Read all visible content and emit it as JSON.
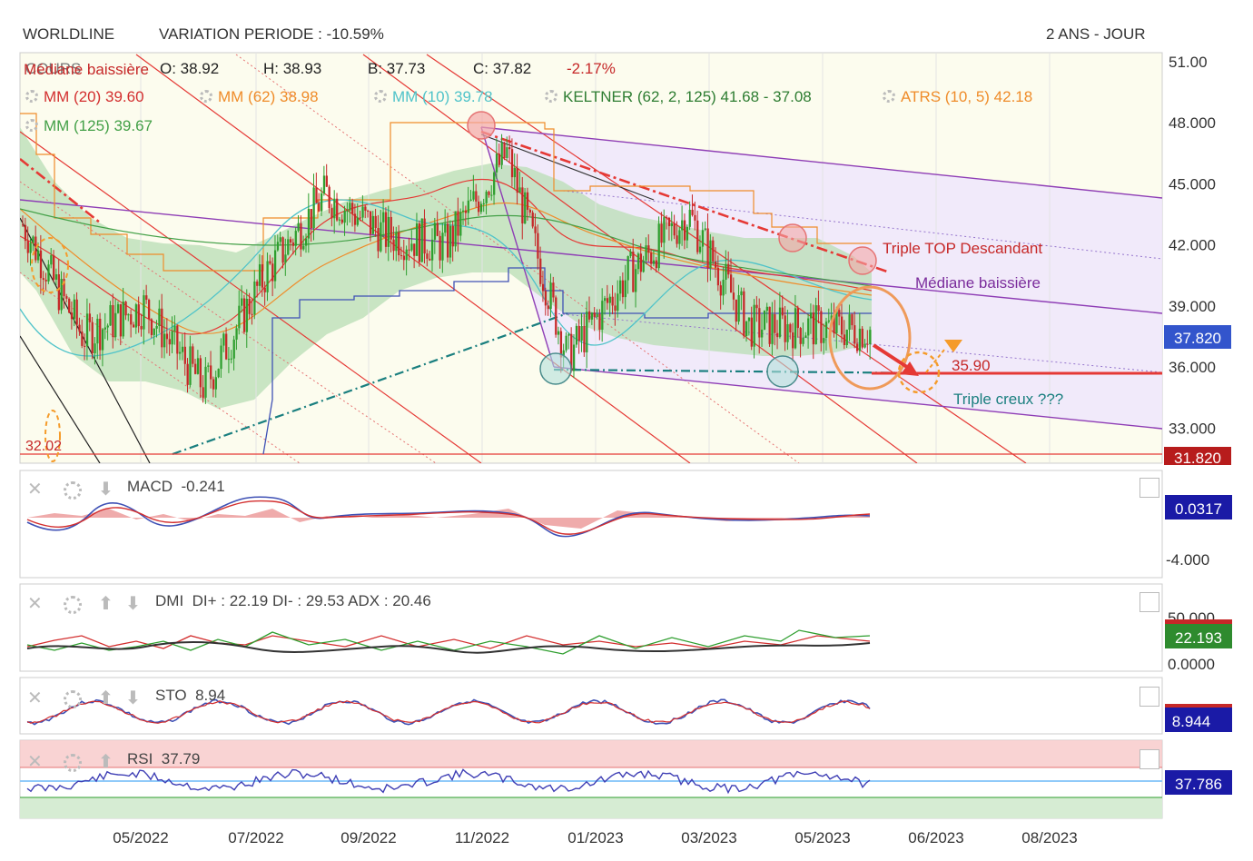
{
  "header": {
    "symbol": "WORLDLINE",
    "variation": "VARIATION PERIODE : -10.59%",
    "period": "2 ANS - JOUR"
  },
  "legend": {
    "cours_label": "COURS",
    "overlap_label": "Médiane baissière",
    "open": "O: 38.92",
    "high": "H: 38.93",
    "low": "B: 37.73",
    "close": "C: 37.82",
    "change": "-2.17%",
    "mm20": "MM (20)  39.60",
    "mm62": "MM (62)  38.98",
    "mm10": "MM (10)  39.78",
    "keltner": "KELTNER (62, 2, 125)  41.68 - 37.08",
    "atrs": "ATRS (10, 5)  42.18",
    "mm125": "MM (125)  39.67"
  },
  "colors": {
    "candle_up": "#2e9e2e",
    "candle_down": "#c62828",
    "mm20": "#d32f2f",
    "mm62": "#ef8c2a",
    "mm10": "#4fc3c9",
    "keltner": "#2e7d32",
    "atrs": "#ef8c2a",
    "mm125": "#43a047",
    "macd_box": "#1a1aa6",
    "dmi_box": "#2e8b2e",
    "price_box": "#3355cc",
    "support_box": "#b71c1c"
  },
  "annotations": {
    "triple_top": "Triple TOP Descandant",
    "mediane": "Médiane baissière",
    "triple_creux": "Triple creux  ???",
    "target": "35.90",
    "low_level": "32.02"
  },
  "panels": {
    "macd": {
      "label": "MACD",
      "value": "-0.241",
      "box": "0.0317",
      "tick": "-4.000"
    },
    "dmi": {
      "label": "DMI",
      "value": "DI+ : 22.19 DI- : 29.53 ADX : 20.46",
      "box": "22.193",
      "tick_top": "50.000",
      "tick_bottom": "0.0000"
    },
    "sto": {
      "label": "STO",
      "value": "8.94",
      "box": "8.944"
    },
    "rsi": {
      "label": "RSI",
      "value": "37.79",
      "box": "37.786"
    }
  },
  "chart_data": {
    "type": "line",
    "title": "WORLDLINE",
    "xlabel": "",
    "ylabel": "",
    "x_ticks": [
      "05/2022",
      "07/2022",
      "09/2022",
      "11/2022",
      "01/2023",
      "03/2023",
      "05/2023",
      "06/2023",
      "08/2023"
    ],
    "y_ticks": [
      "51.00",
      "48.000",
      "45.000",
      "42.000",
      "39.000",
      "36.000",
      "33.000"
    ],
    "ylim": [
      31.5,
      51.0
    ],
    "last_price": "37.820",
    "support_price": "31.820",
    "grid": true,
    "series": [
      {
        "name": "COURS",
        "x": [
          "03/2022",
          "04/2022",
          "05/2022",
          "06/2022",
          "07/2022",
          "08/2022",
          "09/2022",
          "10/2022",
          "11/2022",
          "12/2022",
          "01/2023",
          "02/2023",
          "03/2023",
          "04/2023",
          "05/2023"
        ],
        "values": [
          43.0,
          37.5,
          39.0,
          35.0,
          40.5,
          44.5,
          42.5,
          42.0,
          46.5,
          36.5,
          40.5,
          43.5,
          38.0,
          38.0,
          37.8
        ]
      }
    ]
  }
}
